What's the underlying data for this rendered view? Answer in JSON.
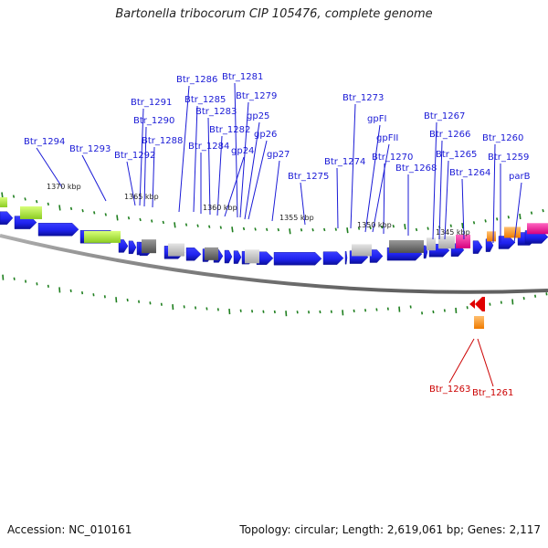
{
  "title": "Bartonella tribocorum CIP 105476, complete genome",
  "footer": {
    "accession": "Accession: NC_010161",
    "summary": "Topology: circular; Length: 2,619,061 bp; Genes: 2,117"
  },
  "colors": {
    "forward_gene": "#1e22ee",
    "forward_gene_dark": "#0b0f9a",
    "highlight_gene": "#e00000",
    "label_blue": "#1a1ad6",
    "label_red": "#cc0000",
    "tick_green": "#1f7f1f",
    "backbone": "#8c8c8c"
  },
  "scale_labels": [
    {
      "id": "kbp-1370",
      "text": "1370 kbp"
    },
    {
      "id": "kbp-1365",
      "text": "1365 kbp"
    },
    {
      "id": "kbp-1360",
      "text": "1360 kbp"
    },
    {
      "id": "kbp-1355",
      "text": "1355 kbp"
    },
    {
      "id": "kbp-1350",
      "text": "1350 kbp"
    },
    {
      "id": "kbp-1345",
      "text": "1345 kbp"
    }
  ],
  "gene_labels": [
    {
      "id": "Btr_1294",
      "text": "Btr_1294"
    },
    {
      "id": "Btr_1293",
      "text": "Btr_1293"
    },
    {
      "id": "Btr_1292",
      "text": "Btr_1292"
    },
    {
      "id": "Btr_1291",
      "text": "Btr_1291"
    },
    {
      "id": "Btr_1290",
      "text": "Btr_1290"
    },
    {
      "id": "Btr_1288",
      "text": "Btr_1288"
    },
    {
      "id": "Btr_1286",
      "text": "Btr_1286"
    },
    {
      "id": "Btr_1285",
      "text": "Btr_1285"
    },
    {
      "id": "Btr_1284",
      "text": "Btr_1284"
    },
    {
      "id": "Btr_1283",
      "text": "Btr_1283"
    },
    {
      "id": "Btr_1282",
      "text": "Btr_1282"
    },
    {
      "id": "Btr_1281",
      "text": "Btr_1281"
    },
    {
      "id": "Btr_1279",
      "text": "Btr_1279"
    },
    {
      "id": "gp24",
      "text": "gp24"
    },
    {
      "id": "gp25",
      "text": "gp25"
    },
    {
      "id": "gp26",
      "text": "gp26"
    },
    {
      "id": "gp27",
      "text": "gp27"
    },
    {
      "id": "Btr_1275",
      "text": "Btr_1275"
    },
    {
      "id": "Btr_1274",
      "text": "Btr_1274"
    },
    {
      "id": "Btr_1273",
      "text": "Btr_1273"
    },
    {
      "id": "gpFI",
      "text": "gpFI"
    },
    {
      "id": "gpFII",
      "text": "gpFII"
    },
    {
      "id": "Btr_1270",
      "text": "Btr_1270"
    },
    {
      "id": "Btr_1268",
      "text": "Btr_1268"
    },
    {
      "id": "Btr_1267",
      "text": "Btr_1267"
    },
    {
      "id": "Btr_1266",
      "text": "Btr_1266"
    },
    {
      "id": "Btr_1265",
      "text": "Btr_1265"
    },
    {
      "id": "Btr_1264",
      "text": "Btr_1264"
    },
    {
      "id": "Btr_1260",
      "text": "Btr_1260"
    },
    {
      "id": "Btr_1259",
      "text": "Btr_1259"
    },
    {
      "id": "parB",
      "text": "parB"
    },
    {
      "id": "Btr_1263",
      "text": "Btr_1263"
    },
    {
      "id": "Btr_1261",
      "text": "Btr_1261"
    }
  ]
}
